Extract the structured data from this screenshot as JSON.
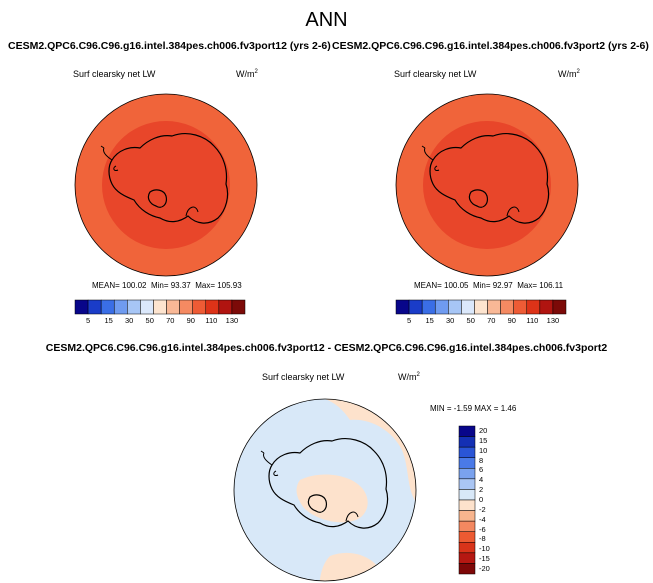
{
  "page": {
    "title": "ANN"
  },
  "left_panel": {
    "case_title": "CESM2.QPC6.C96.C96.g16.intel.384pes.ch006.fv3port12 (yrs 2-6)",
    "variable": "Surf clearsky net LW",
    "unit_base": "W/m",
    "unit_exp": "2",
    "mean_text": "MEAN= 100.02",
    "min_text": "Min= 93.37",
    "max_text": "Max= 105.93",
    "outer_color": "#f0643a",
    "inner_color": "#e8462a"
  },
  "right_panel": {
    "case_title": "CESM2.QPC6.C96.C96.g16.intel.384pes.ch006.fv3port2 (yrs 2-6)",
    "variable": "Surf clearsky net LW",
    "unit_base": "W/m",
    "unit_exp": "2",
    "mean_text": "MEAN= 100.05",
    "min_text": "Min= 92.97",
    "max_text": "Max= 106.11",
    "outer_color": "#f0643a",
    "inner_color": "#e8462a"
  },
  "diff_panel": {
    "title": "CESM2.QPC6.C96.C96.g16.intel.384pes.ch006.fv3port12 - CESM2.QPC6.C96.C96.g16.intel.384pes.ch006.fv3port2",
    "variable": "Surf clearsky net LW",
    "unit_base": "W/m",
    "unit_exp": "2",
    "minmax_text": "MIN = -1.59 MAX = 1.46",
    "positive_color": "#fde2cc",
    "negative_color": "#d8e8f8"
  },
  "colorbar_abs": {
    "colors": [
      "#08068a",
      "#1a3cc8",
      "#3a6ee6",
      "#6f9bf0",
      "#a7c6f6",
      "#dbe8fb",
      "#fde4cf",
      "#f9b896",
      "#f58a62",
      "#ee5b35",
      "#dd3318",
      "#b01410",
      "#7c0a08"
    ],
    "ticks": [
      "5",
      "15",
      "30",
      "50",
      "70",
      "90",
      "110",
      "130"
    ],
    "ticks_shown": [
      "5",
      "15",
      "30",
      "50",
      "70",
      "90",
      "110",
      "130"
    ]
  },
  "colorbar_abs_labels": [
    "5",
    "15",
    "30",
    "50",
    "70",
    "90",
    "110",
    "130"
  ],
  "colorbar_diff": {
    "colors": [
      "#08068a",
      "#1430b4",
      "#2a55d6",
      "#4a7ae8",
      "#7aa2ee",
      "#aac6f4",
      "#d8e8f8",
      "#fde2cc",
      "#f8b58e",
      "#f38860",
      "#ec5a32",
      "#d8341a",
      "#b51812",
      "#7e0808"
    ],
    "labels": [
      "20",
      "15",
      "10",
      "8",
      "6",
      "4",
      "2",
      "0",
      "-2",
      "-4",
      "-6",
      "-8",
      "-10",
      "-15",
      "-20"
    ]
  }
}
